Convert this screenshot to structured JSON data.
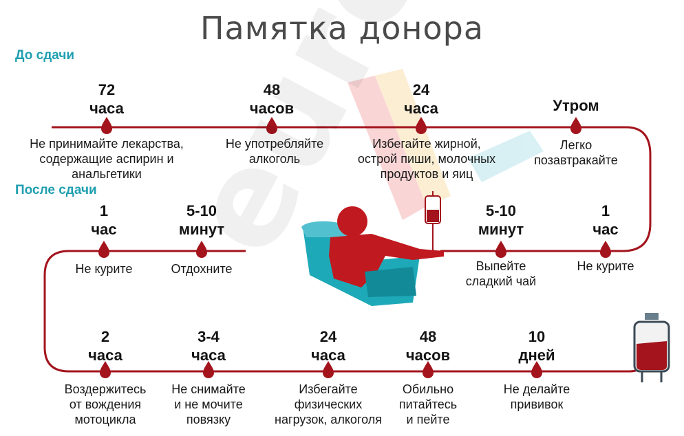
{
  "title": "Памятка донора",
  "before": {
    "heading": "До сдачи",
    "items": [
      {
        "time": [
          "72",
          "часа"
        ],
        "text": [
          "Не принимайте лекарства,",
          "содержащие аспирин и",
          "анальгетики"
        ]
      },
      {
        "time": [
          "48",
          "часов"
        ],
        "text": [
          "Не употребляйте",
          "алкоголь"
        ]
      },
      {
        "time": [
          "24",
          "часа"
        ],
        "text": [
          "Избегайте жирной,",
          "острой пиши, молочных",
          "продуктов и яиц"
        ]
      },
      {
        "time": [
          "Утром"
        ],
        "text": [
          "Легко",
          "позавтракайте"
        ]
      }
    ]
  },
  "after": {
    "heading": "После сдачи",
    "row1": [
      {
        "time": [
          "1",
          "час"
        ],
        "text": [
          "Не курите"
        ]
      },
      {
        "time": [
          "5-10",
          "минут"
        ],
        "text": [
          "Отдохните"
        ]
      },
      {
        "time": [
          "5-10",
          "минут"
        ],
        "text": [
          "Выпейте",
          "сладкий чай"
        ]
      },
      {
        "time": [
          "1",
          "час"
        ],
        "text": [
          "Не курите"
        ]
      }
    ],
    "row2": [
      {
        "time": [
          "2",
          "часа"
        ],
        "text": [
          "Воздержитесь",
          "от вождения",
          "мотоцикла"
        ]
      },
      {
        "time": [
          "3-4",
          "часа"
        ],
        "text": [
          "Не снимайте",
          "и не мочите",
          "повязку"
        ]
      },
      {
        "time": [
          "24",
          "часа"
        ],
        "text": [
          "Избегайте",
          "физических",
          "нагрузок, алкоголя"
        ]
      },
      {
        "time": [
          "48",
          "часов"
        ],
        "text": [
          "Обильно",
          "питайтесь",
          "и пейте"
        ]
      },
      {
        "time": [
          "10",
          "дней"
        ],
        "text": [
          "Не делайте",
          "прививок"
        ]
      }
    ]
  },
  "watermark": "euroki",
  "colors": {
    "accent": "#a3141d",
    "heading": "#1f9fb0",
    "title": "#4a4a4a",
    "bed": "#1ea9b8"
  }
}
